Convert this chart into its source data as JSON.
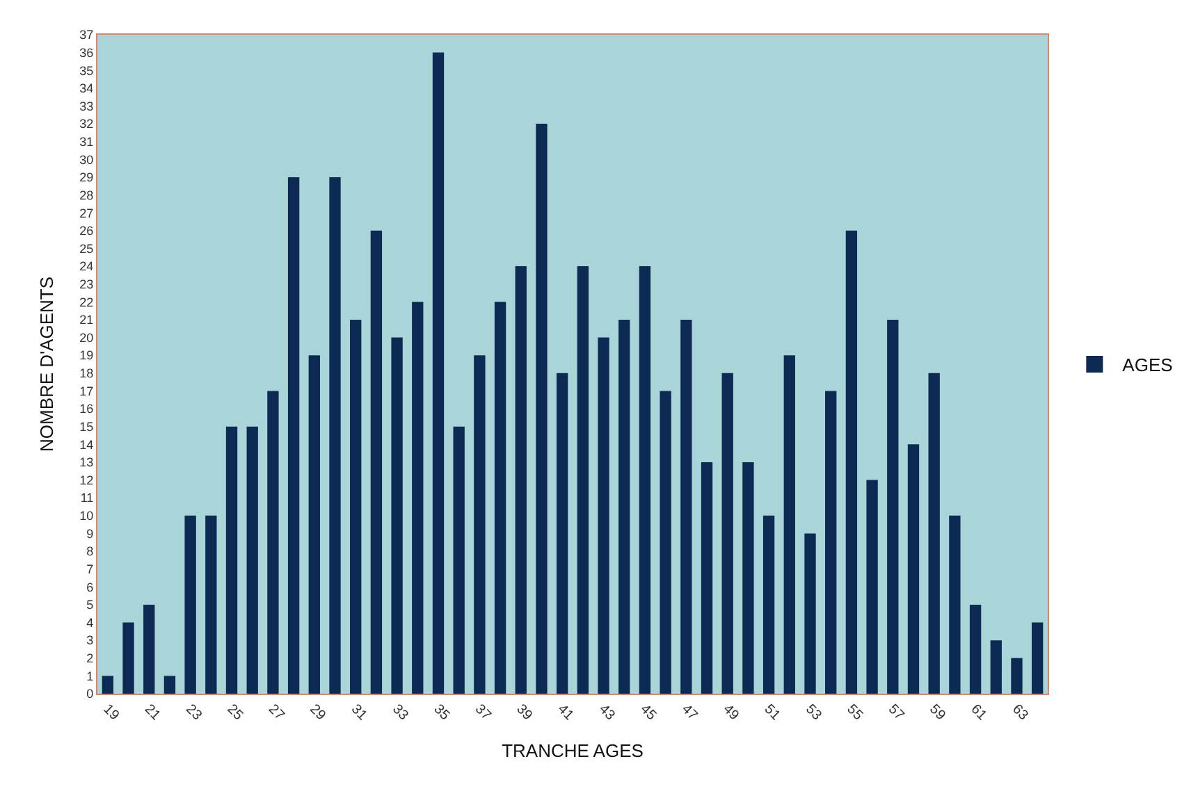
{
  "chart_data": {
    "type": "bar",
    "xlabel": "TRANCHE AGES",
    "ylabel": "NOMBRE D'AGENTS",
    "categories": [
      "19",
      null,
      "21",
      null,
      "23",
      null,
      "25",
      null,
      "27",
      null,
      "29",
      null,
      "31",
      null,
      "33",
      null,
      "35",
      null,
      "37",
      null,
      "39",
      null,
      "41",
      null,
      "43",
      null,
      "45",
      null,
      "47",
      null,
      "49",
      null,
      "51",
      null,
      "53",
      null,
      "55",
      null,
      "57",
      null,
      "59",
      null,
      "61",
      null,
      "63",
      null
    ],
    "series": [
      {
        "name": "AGES",
        "color": "#0d2a55",
        "values": [
          1,
          4,
          5,
          1,
          10,
          10,
          15,
          15,
          17,
          29,
          19,
          29,
          21,
          26,
          20,
          22,
          36,
          15,
          19,
          22,
          24,
          32,
          18,
          24,
          20,
          21,
          24,
          17,
          21,
          13,
          18,
          13,
          10,
          19,
          9,
          17,
          26,
          12,
          21,
          14,
          18,
          10,
          5,
          3,
          2,
          4
        ]
      }
    ],
    "ylim": [
      0,
      37
    ],
    "yticks": [
      0,
      1,
      2,
      3,
      4,
      5,
      6,
      7,
      8,
      9,
      10,
      11,
      12,
      13,
      14,
      15,
      16,
      17,
      18,
      19,
      20,
      21,
      22,
      23,
      24,
      25,
      26,
      27,
      28,
      29,
      30,
      31,
      32,
      33,
      34,
      35,
      36,
      37
    ],
    "grid": false,
    "legend": "right"
  }
}
